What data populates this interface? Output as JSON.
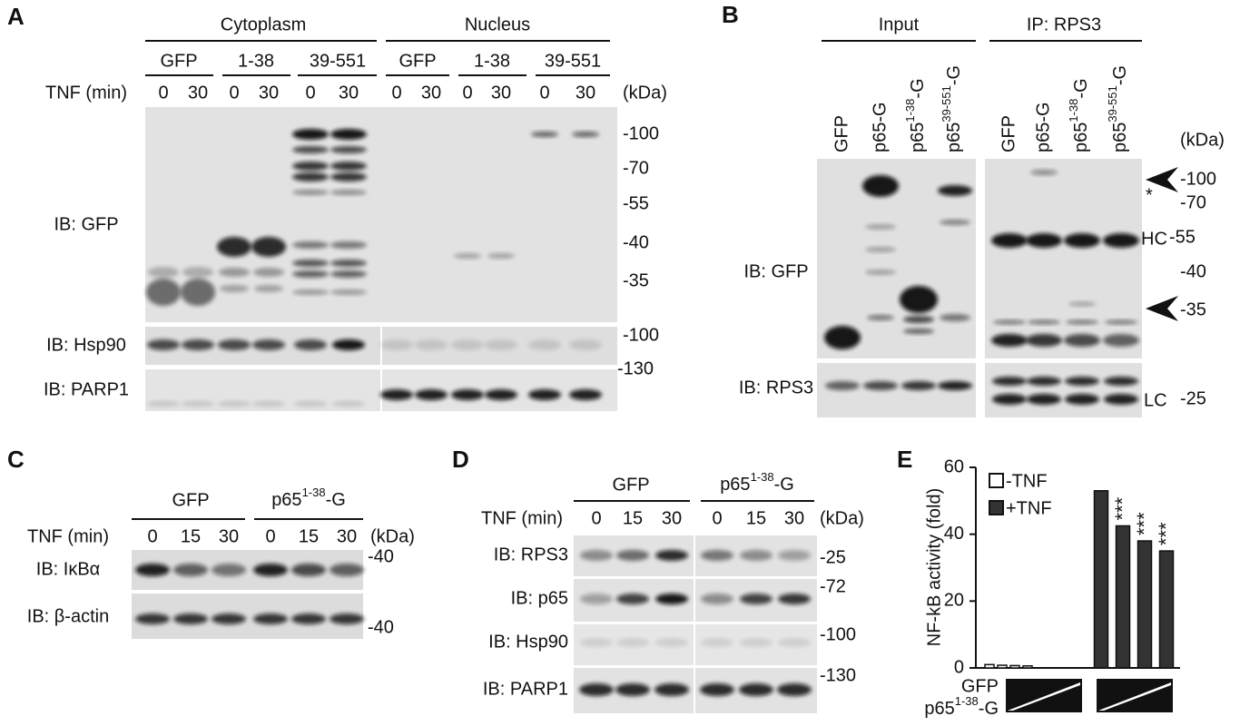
{
  "panels": {
    "A": {
      "letter": "A",
      "groups": [
        "Cytoplasm",
        "Nucleus"
      ],
      "constructs": [
        "GFP",
        "1-38",
        "39-551",
        "GFP",
        "1-38",
        "39-551"
      ],
      "treatment_label": "TNF (min)",
      "times": [
        "0",
        "30",
        "0",
        "30",
        "0",
        "30",
        "0",
        "30",
        "0",
        "30",
        "0",
        "30"
      ],
      "unit": "(kDa)",
      "blots": [
        {
          "label": "IB: GFP",
          "markers": [
            "-100",
            "-70",
            "-55",
            "-40",
            "-35"
          ]
        },
        {
          "label": "IB: Hsp90",
          "markers": [
            "-100"
          ]
        },
        {
          "label": "IB: PARP1",
          "markers": [
            "-130"
          ]
        }
      ]
    },
    "B": {
      "letter": "B",
      "groups": [
        "Input",
        "IP: RPS3"
      ],
      "lanes": [
        "GFP",
        "p65-G",
        {
          "text": "p65",
          "sup": "1-38",
          "suffix": "-G"
        },
        {
          "text": "p65",
          "sup": "39-551",
          "suffix": "-G"
        },
        "GFP",
        "p65-G",
        {
          "text": "p65",
          "sup": "1-38",
          "suffix": "-G"
        },
        {
          "text": "p65",
          "sup": "39-551",
          "suffix": "-G"
        }
      ],
      "unit": "(kDa)",
      "blots": [
        {
          "label": "IB: GFP",
          "annotations": [
            "*",
            "HC"
          ],
          "markers": [
            "-100",
            "-70",
            "-55",
            "-40",
            "-35"
          ]
        },
        {
          "label": "IB: RPS3",
          "annotations": [
            "LC"
          ],
          "markers": [
            "-25"
          ]
        }
      ]
    },
    "C": {
      "letter": "C",
      "groups": [
        "GFP",
        {
          "text": "p65",
          "sup": "1-38",
          "suffix": "-G"
        }
      ],
      "treatment_label": "TNF (min)",
      "times": [
        "0",
        "15",
        "30",
        "0",
        "15",
        "30"
      ],
      "unit": "(kDa)",
      "blots": [
        {
          "label": "IB: IκBα",
          "markers": [
            "-40"
          ]
        },
        {
          "label": "IB: β-actin",
          "markers": [
            "-40"
          ]
        }
      ]
    },
    "D": {
      "letter": "D",
      "groups": [
        "GFP",
        {
          "text": "p65",
          "sup": "1-38",
          "suffix": "-G"
        }
      ],
      "treatment_label": "TNF (min)",
      "times": [
        "0",
        "15",
        "30",
        "0",
        "15",
        "30"
      ],
      "unit": "(kDa)",
      "blots": [
        {
          "label": "IB: RPS3",
          "markers": [
            "-25"
          ]
        },
        {
          "label": "IB: p65",
          "markers": [
            "-72"
          ]
        },
        {
          "label": "IB: Hsp90",
          "markers": [
            "-100"
          ]
        },
        {
          "label": "IB: PARP1",
          "markers": [
            "-130"
          ]
        }
      ]
    },
    "E": {
      "letter": "E",
      "x_labels": [
        "GFP",
        {
          "text": "p65",
          "sup": "1-38",
          "suffix": "-G"
        }
      ]
    }
  },
  "chart_data": {
    "type": "bar",
    "y_label": "NF-kB activity (fold)",
    "categories": [
      null,
      null,
      null,
      null,
      null,
      null,
      null,
      null
    ],
    "series": [
      {
        "name": "-TNF",
        "color": "#ffffff",
        "values": [
          1,
          0.8,
          0.7,
          0.6,
          null,
          null,
          null,
          null
        ]
      },
      {
        "name": "+TNF",
        "color": "#333333",
        "values": [
          null,
          null,
          null,
          null,
          53,
          42.5,
          38,
          35
        ]
      }
    ],
    "annotations": [
      "***",
      "***",
      "***"
    ],
    "ylim": [
      0,
      60
    ],
    "yticks": [
      0,
      20,
      40,
      60
    ]
  }
}
